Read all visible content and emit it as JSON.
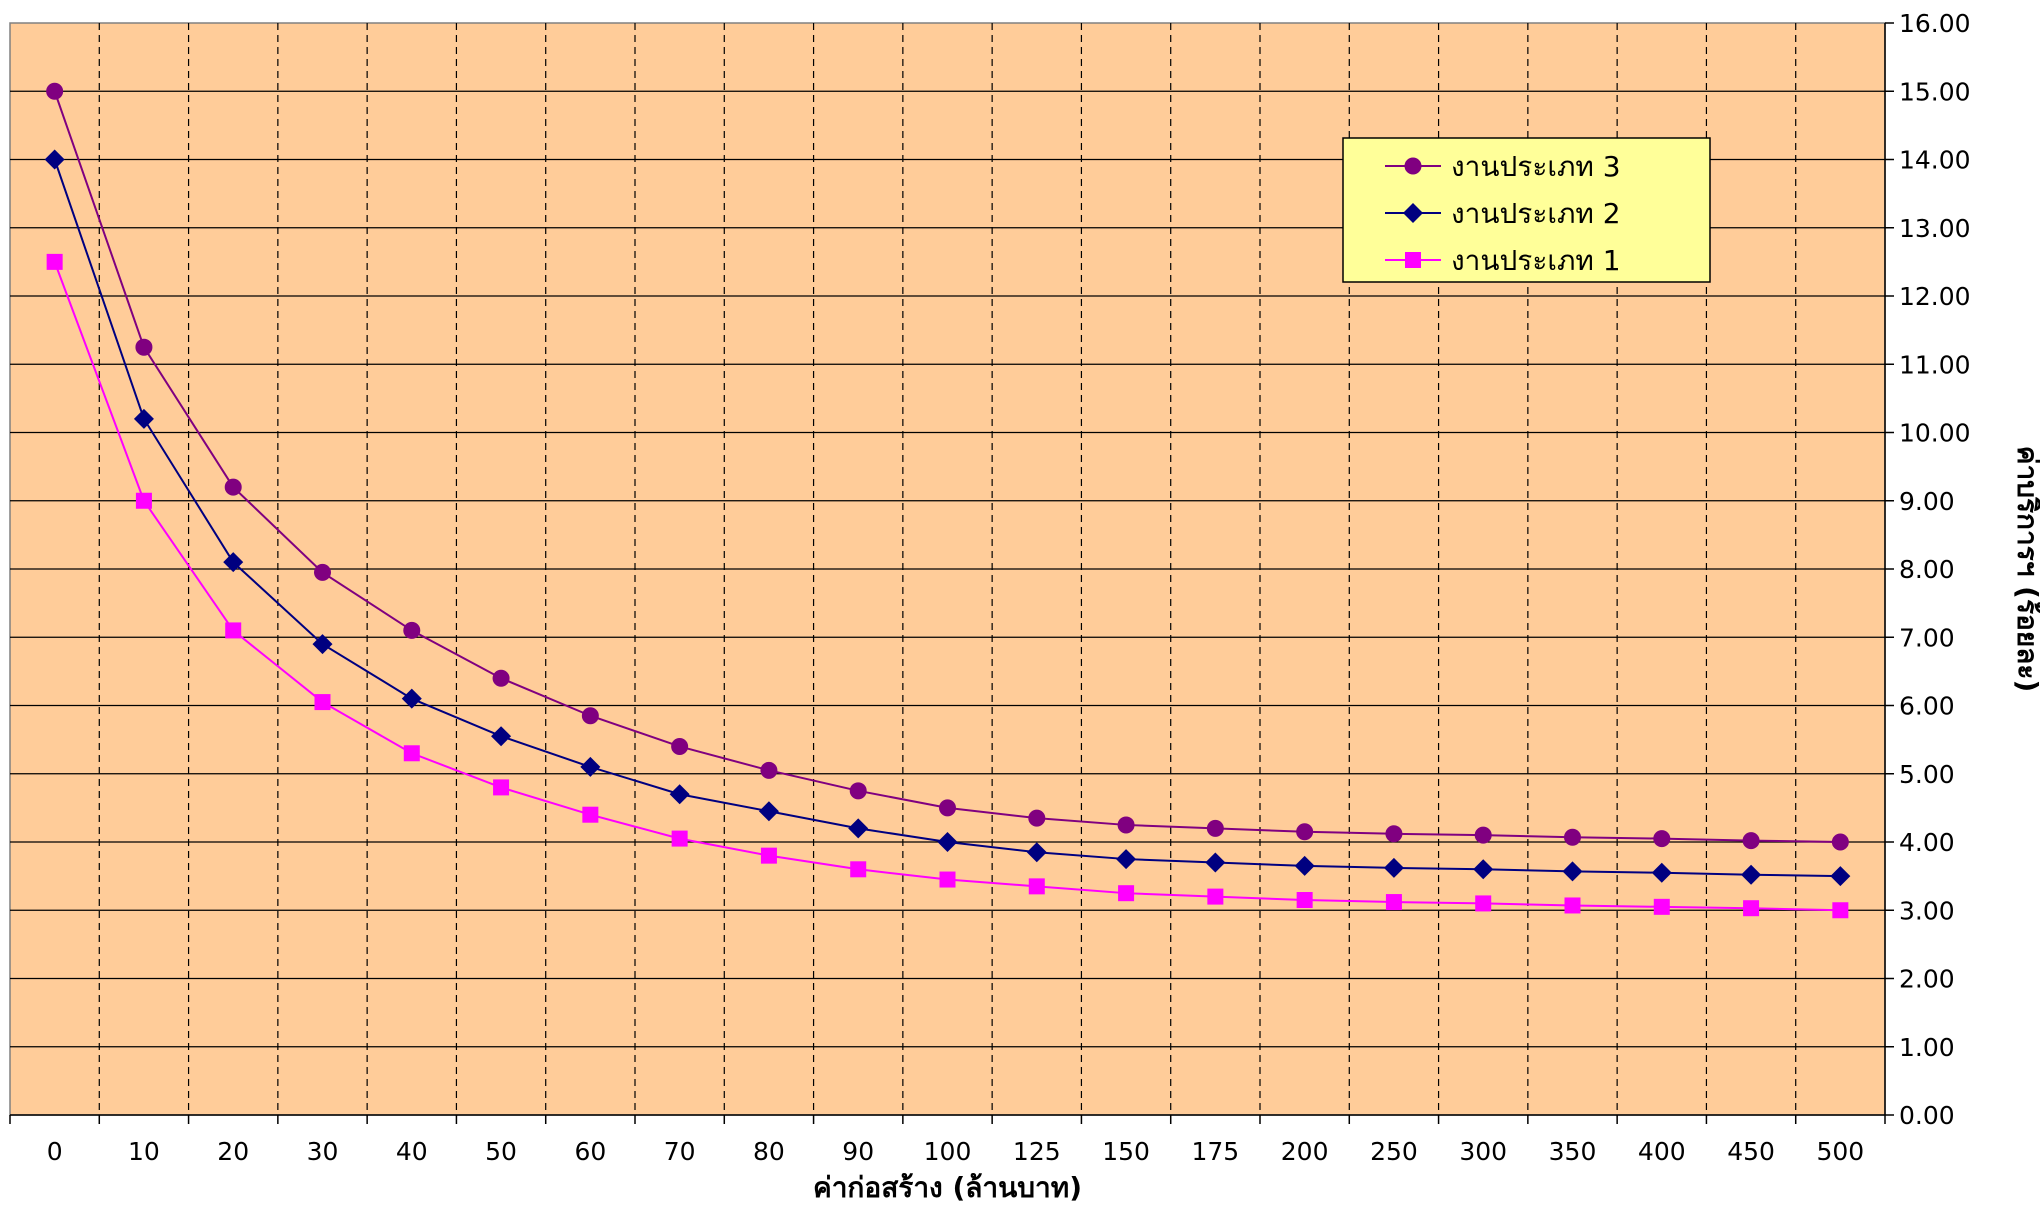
{
  "chart_data": {
    "type": "line",
    "title": "",
    "xlabel": "ค่าก่อสร้าง (ล้านบาท)",
    "ylabel": "ค่าบริการฯ (ร้อยละ)",
    "categories": [
      "0",
      "10",
      "20",
      "30",
      "40",
      "50",
      "60",
      "70",
      "80",
      "90",
      "100",
      "125",
      "150",
      "175",
      "200",
      "250",
      "300",
      "350",
      "400",
      "450",
      "500"
    ],
    "ylim": [
      0,
      16
    ],
    "y_ticks": [
      "0.00",
      "1.00",
      "2.00",
      "3.00",
      "4.00",
      "5.00",
      "6.00",
      "7.00",
      "8.00",
      "9.00",
      "10.00",
      "11.00",
      "12.00",
      "13.00",
      "14.00",
      "15.00",
      "16.00"
    ],
    "y_axis_position": "right",
    "grid": true,
    "legend_position": "top-right",
    "background_color": "#FFCC99",
    "legend_background": "#FFFF99",
    "series": [
      {
        "name": "งานประเภท  3",
        "marker": "circle",
        "color": "#800080",
        "values": [
          15.0,
          11.25,
          9.2,
          7.95,
          7.1,
          6.4,
          5.85,
          5.4,
          5.05,
          4.75,
          4.5,
          4.35,
          4.25,
          4.2,
          4.15,
          4.12,
          4.1,
          4.07,
          4.05,
          4.02,
          4.0
        ]
      },
      {
        "name": "งานประเภท  2",
        "marker": "diamond",
        "color": "#000080",
        "values": [
          14.0,
          10.2,
          8.1,
          6.9,
          6.1,
          5.55,
          5.1,
          4.7,
          4.45,
          4.2,
          4.0,
          3.85,
          3.75,
          3.7,
          3.65,
          3.62,
          3.6,
          3.57,
          3.55,
          3.52,
          3.5
        ]
      },
      {
        "name": "งานประเภท  1",
        "marker": "square",
        "color": "#FF00FF",
        "values": [
          12.5,
          9.0,
          7.1,
          6.05,
          5.3,
          4.8,
          4.4,
          4.05,
          3.8,
          3.6,
          3.45,
          3.35,
          3.25,
          3.2,
          3.15,
          3.12,
          3.1,
          3.07,
          3.05,
          3.03,
          3.0
        ]
      }
    ]
  }
}
